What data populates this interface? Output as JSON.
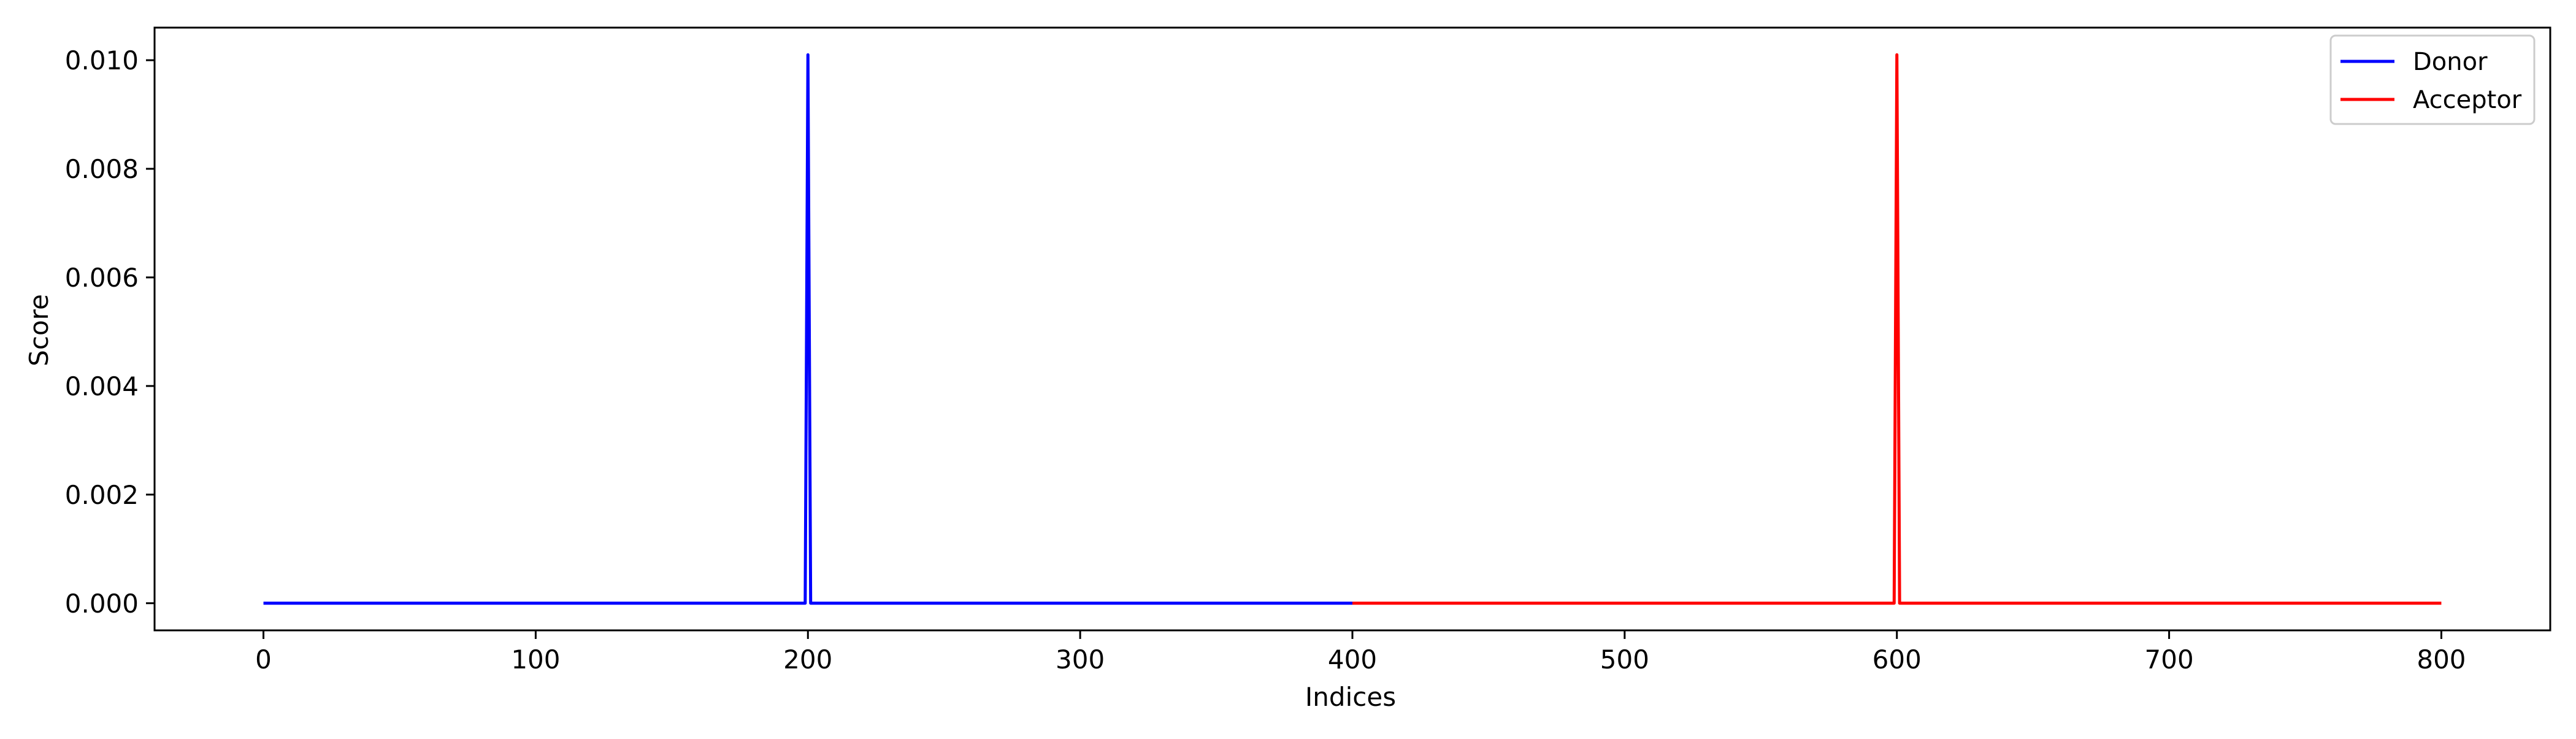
{
  "chart_data": {
    "type": "line",
    "title": "",
    "xlabel": "Indices",
    "ylabel": "Score",
    "xlim": [
      -40,
      840
    ],
    "ylim": [
      -0.0005,
      0.0106
    ],
    "x_ticks": [
      0,
      100,
      200,
      300,
      400,
      500,
      600,
      700,
      800
    ],
    "y_ticks": [
      0.0,
      0.002,
      0.004,
      0.006,
      0.008,
      0.01
    ],
    "x_tick_labels": [
      "0",
      "100",
      "200",
      "300",
      "400",
      "500",
      "600",
      "700",
      "800"
    ],
    "y_tick_labels": [
      "0.000",
      "0.002",
      "0.004",
      "0.006",
      "0.008",
      "0.010"
    ],
    "grid": false,
    "legend_position": "top-right",
    "series": [
      {
        "name": "Donor",
        "color": "#0000ff",
        "x": [
          0,
          199,
          200,
          201,
          400
        ],
        "y": [
          0.0,
          0.0,
          0.0101,
          0.0,
          0.0
        ]
      },
      {
        "name": "Acceptor",
        "color": "#ff0000",
        "x": [
          400,
          599,
          600,
          601,
          800
        ],
        "y": [
          0.0,
          0.0,
          0.0101,
          0.0,
          0.0
        ]
      }
    ]
  }
}
